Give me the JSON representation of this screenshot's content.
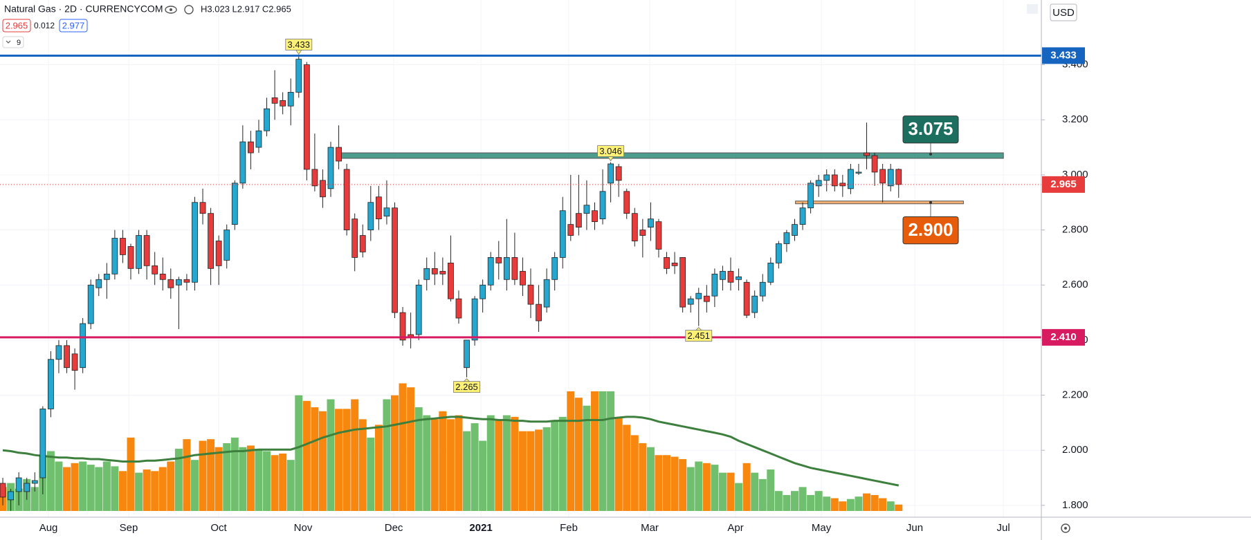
{
  "chart_data": {
    "type": "candlestick",
    "title": "Natural Gas · 2D · CURRENCYCOM",
    "ohlc_legend": "H3.023 L2.917 C2.965",
    "bid": 2.965,
    "spread": 0.012,
    "ask": 2.977,
    "indicator_count": 9,
    "currency": "USD",
    "up_color": "#26a7cf",
    "down_color": "#e83b3b",
    "volume_up_color": "#6fbf6f",
    "volume_down_color": "#f7870f",
    "volume_ma_color": "#3d7f3d",
    "open": [
      1.88,
      1.82,
      1.85,
      1.85,
      1.88,
      1.9,
      2.15,
      2.33,
      2.38,
      2.35,
      2.3,
      2.46,
      2.59,
      2.62,
      2.64,
      2.77,
      2.74,
      2.66,
      2.78,
      2.67,
      2.64,
      2.62,
      2.6,
      2.62,
      2.61,
      2.9,
      2.86,
      2.76,
      2.69,
      2.82,
      2.97,
      3.12,
      3.1,
      3.16,
      3.28,
      3.27,
      3.25,
      3.3,
      3.4,
      3.02,
      2.98,
      2.95,
      3.1,
      3.02,
      2.84,
      2.78,
      2.8,
      2.92,
      2.85,
      2.88,
      2.5,
      2.42,
      2.42,
      2.62,
      2.66,
      2.65,
      2.68,
      2.55,
      2.3,
      2.4,
      2.55,
      2.6,
      2.7,
      2.62,
      2.7,
      2.65,
      2.6,
      2.53,
      2.52,
      2.62,
      2.7,
      2.82,
      2.86,
      2.86,
      2.87,
      2.84,
      2.97,
      3.03,
      2.94,
      2.86,
      2.8,
      2.81,
      2.83,
      2.7,
      2.68,
      2.7,
      2.53,
      2.55,
      2.56,
      2.56,
      2.62,
      2.65,
      2.62,
      2.61,
      2.5,
      2.56,
      2.61,
      2.68,
      2.75,
      2.78,
      2.82,
      2.88,
      2.96,
      2.98,
      3.0,
      2.97,
      2.95,
      3.01,
      3.08,
      3.07,
      3.02,
      2.96,
      3.02
    ],
    "high": [
      1.9,
      1.86,
      1.92,
      1.9,
      1.92,
      2.16,
      2.36,
      2.4,
      2.4,
      2.37,
      2.48,
      2.62,
      2.64,
      2.68,
      2.8,
      2.8,
      2.75,
      2.8,
      2.8,
      2.72,
      2.7,
      2.66,
      2.63,
      2.64,
      2.92,
      2.95,
      2.88,
      2.78,
      2.82,
      2.98,
      3.18,
      3.16,
      3.2,
      3.28,
      3.38,
      3.3,
      3.35,
      3.433,
      3.41,
      3.15,
      3.02,
      3.12,
      3.18,
      3.04,
      2.86,
      2.82,
      2.96,
      2.96,
      2.98,
      2.9,
      2.52,
      2.5,
      2.62,
      2.7,
      2.72,
      2.7,
      2.78,
      2.58,
      2.4,
      2.56,
      2.62,
      2.72,
      2.76,
      2.84,
      2.79,
      2.7,
      2.66,
      2.6,
      2.66,
      2.72,
      2.92,
      3.0,
      3.0,
      2.98,
      2.9,
      3.02,
      3.046,
      3.04,
      2.95,
      2.88,
      2.84,
      2.9,
      2.84,
      2.72,
      2.72,
      2.7,
      2.56,
      2.59,
      2.6,
      2.66,
      2.67,
      2.7,
      2.66,
      2.62,
      2.58,
      2.64,
      2.7,
      2.76,
      2.8,
      2.84,
      2.9,
      2.98,
      3.0,
      3.02,
      3.02,
      3.0,
      3.04,
      3.04,
      3.19,
      3.08,
      3.04,
      3.04,
      3.023
    ],
    "low": [
      1.8,
      1.78,
      1.8,
      1.82,
      1.85,
      1.84,
      2.12,
      2.28,
      2.28,
      2.22,
      2.28,
      2.44,
      2.56,
      2.55,
      2.62,
      2.68,
      2.62,
      2.64,
      2.62,
      2.6,
      2.58,
      2.55,
      2.44,
      2.58,
      2.58,
      2.82,
      2.6,
      2.6,
      2.66,
      2.8,
      2.95,
      3.02,
      3.08,
      3.14,
      3.2,
      3.22,
      3.18,
      3.28,
      2.98,
      2.94,
      2.88,
      2.92,
      3.02,
      2.78,
      2.65,
      2.7,
      2.76,
      2.8,
      2.82,
      2.48,
      2.38,
      2.37,
      2.4,
      2.58,
      2.6,
      2.6,
      2.54,
      2.46,
      2.265,
      2.38,
      2.5,
      2.58,
      2.62,
      2.58,
      2.6,
      2.56,
      2.48,
      2.43,
      2.5,
      2.58,
      2.66,
      2.76,
      2.78,
      2.8,
      2.8,
      2.82,
      2.9,
      2.92,
      2.84,
      2.74,
      2.7,
      2.76,
      2.7,
      2.64,
      2.64,
      2.5,
      2.5,
      2.451,
      2.5,
      2.52,
      2.58,
      2.58,
      2.58,
      2.48,
      2.48,
      2.54,
      2.6,
      2.66,
      2.72,
      2.76,
      2.8,
      2.86,
      2.92,
      2.94,
      2.94,
      2.92,
      2.93,
      3.0,
      3.02,
      2.96,
      2.9,
      2.94,
      2.917
    ],
    "close": [
      1.83,
      1.85,
      1.9,
      1.88,
      1.89,
      2.15,
      2.33,
      2.38,
      2.3,
      2.29,
      2.46,
      2.6,
      2.62,
      2.64,
      2.77,
      2.71,
      2.66,
      2.78,
      2.67,
      2.64,
      2.62,
      2.59,
      2.62,
      2.61,
      2.9,
      2.86,
      2.66,
      2.67,
      2.8,
      2.97,
      3.12,
      3.08,
      3.16,
      3.24,
      3.26,
      3.25,
      3.3,
      3.42,
      3.02,
      2.96,
      2.92,
      3.1,
      3.05,
      2.8,
      2.7,
      2.72,
      2.9,
      2.84,
      2.88,
      2.5,
      2.4,
      2.41,
      2.6,
      2.66,
      2.64,
      2.64,
      2.55,
      2.48,
      2.4,
      2.55,
      2.6,
      2.7,
      2.68,
      2.7,
      2.62,
      2.6,
      2.53,
      2.47,
      2.62,
      2.7,
      2.87,
      2.78,
      2.81,
      2.89,
      2.83,
      2.94,
      3.04,
      2.98,
      2.86,
      2.76,
      2.78,
      2.84,
      2.73,
      2.66,
      2.67,
      2.52,
      2.55,
      2.57,
      2.54,
      2.64,
      2.65,
      2.61,
      2.63,
      2.49,
      2.56,
      2.61,
      2.68,
      2.75,
      2.79,
      2.82,
      2.88,
      2.97,
      2.98,
      3.0,
      2.96,
      2.96,
      3.02,
      3.01,
      3.07,
      3.01,
      2.97,
      3.02,
      2.965
    ],
    "volume": [
      30,
      35,
      28,
      40,
      30,
      70,
      75,
      62,
      55,
      60,
      62,
      58,
      55,
      62,
      56,
      50,
      92,
      48,
      52,
      50,
      55,
      62,
      78,
      90,
      64,
      88,
      90,
      80,
      85,
      92,
      80,
      82,
      78,
      75,
      70,
      72,
      64,
      145,
      138,
      130,
      125,
      140,
      128,
      128,
      140,
      115,
      92,
      108,
      140,
      145,
      160,
      155,
      130,
      120,
      115,
      125,
      115,
      120,
      100,
      110,
      88,
      120,
      115,
      120,
      118,
      100,
      100,
      102,
      105,
      112,
      118,
      150,
      142,
      132,
      150,
      150,
      150,
      118,
      108,
      95,
      85,
      80,
      70,
      70,
      68,
      65,
      55,
      62,
      60,
      58,
      48,
      48,
      35,
      60,
      48,
      40,
      52,
      25,
      20,
      25,
      30,
      20,
      25,
      18,
      16,
      12,
      15,
      18,
      22,
      20,
      16,
      12,
      8
    ],
    "volume_ma": [
      76,
      75,
      73,
      72,
      70,
      69,
      68,
      67,
      67,
      66,
      66,
      65,
      65,
      64,
      63,
      62,
      62,
      62,
      63,
      63,
      64,
      65,
      66,
      68,
      70,
      71,
      72,
      73,
      74,
      75,
      75,
      76,
      77,
      77,
      77,
      77,
      77,
      80,
      84,
      88,
      92,
      95,
      98,
      100,
      102,
      103,
      104,
      105,
      106,
      108,
      110,
      112,
      114,
      115,
      116,
      117,
      118,
      118,
      117,
      116,
      115,
      115,
      114,
      114,
      113,
      113,
      112,
      112,
      112,
      113,
      113,
      113,
      113,
      114,
      114,
      114,
      116,
      117,
      118,
      118,
      117,
      115,
      112,
      110,
      108,
      106,
      104,
      102,
      100,
      98,
      96,
      93,
      88,
      84,
      80,
      76,
      72,
      68,
      64,
      60,
      57,
      54,
      52,
      50,
      48,
      46,
      44,
      42,
      40,
      38,
      36,
      34,
      32
    ],
    "xlim": [
      -0.35,
      129.84
    ],
    "xticks": [
      {
        "value": 5.71,
        "label": "Aug"
      },
      {
        "value": 15.74,
        "label": "Sep"
      },
      {
        "value": 26.99,
        "label": "Oct"
      },
      {
        "value": 37.54,
        "label": "Nov"
      },
      {
        "value": 48.88,
        "label": "Dec"
      },
      {
        "value": 59.78,
        "label": "2021"
      },
      {
        "value": 70.76,
        "label": "Feb"
      },
      {
        "value": 80.88,
        "label": "Mar"
      },
      {
        "value": 91.61,
        "label": "Apr"
      },
      {
        "value": 102.34,
        "label": "May"
      },
      {
        "value": 114.01,
        "label": "Jun"
      },
      {
        "value": 125.09,
        "label": "Jul"
      }
    ],
    "ylim": [
      1.757,
      3.635
    ],
    "yticks": [
      {
        "value": 1.8,
        "label": "1.800"
      },
      {
        "value": 2.0,
        "label": "2.000"
      },
      {
        "value": 2.2,
        "label": "2.200"
      },
      {
        "value": 2.4,
        "label": "2.400"
      },
      {
        "value": 2.6,
        "label": "2.600"
      },
      {
        "value": 2.8,
        "label": "2.800"
      },
      {
        "value": 3.0,
        "label": "3.000"
      },
      {
        "value": 3.2,
        "label": "3.200"
      },
      {
        "value": 3.4,
        "label": "3.400"
      }
    ],
    "levels": [
      {
        "value": 3.433,
        "label": "3.433",
        "color": "#1565c0"
      },
      {
        "value": 2.41,
        "label": "2.410",
        "color": "#d81b60"
      }
    ],
    "last_price": {
      "value": 2.965,
      "color": "#e83b3b"
    },
    "zones": [
      {
        "low": 3.06,
        "high": 3.08,
        "start": 41.9,
        "end": 125.1,
        "color": "#2e8b7a",
        "target": 3.075,
        "target_label": "3.075"
      },
      {
        "low": 2.895,
        "high": 2.905,
        "start": 99.1,
        "end": 120.1,
        "color": "#f4a259",
        "target": 2.9,
        "target_label": "2.900"
      }
    ],
    "annotations": [
      {
        "index": 37,
        "value": 3.433
      },
      {
        "index": 76,
        "value": 3.046
      },
      {
        "index": 87,
        "value": 2.451
      },
      {
        "index": 58,
        "value": 2.265
      }
    ]
  }
}
